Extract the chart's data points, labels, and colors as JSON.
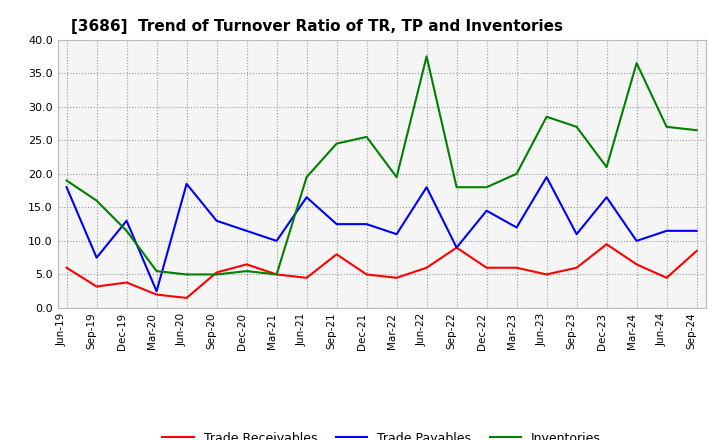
{
  "title": "[3686]  Trend of Turnover Ratio of TR, TP and Inventories",
  "x_labels": [
    "Jun-19",
    "Sep-19",
    "Dec-19",
    "Mar-20",
    "Jun-20",
    "Sep-20",
    "Dec-20",
    "Mar-21",
    "Jun-21",
    "Sep-21",
    "Dec-21",
    "Mar-22",
    "Jun-22",
    "Sep-22",
    "Dec-22",
    "Mar-23",
    "Jun-23",
    "Sep-23",
    "Dec-23",
    "Mar-24",
    "Jun-24",
    "Sep-24"
  ],
  "trade_receivables": [
    6.0,
    3.2,
    3.8,
    2.0,
    1.5,
    5.3,
    6.5,
    5.0,
    4.5,
    8.0,
    5.0,
    4.5,
    6.0,
    9.0,
    6.0,
    6.0,
    5.0,
    6.0,
    9.5,
    6.5,
    4.5,
    8.5
  ],
  "trade_payables": [
    18.0,
    7.5,
    13.0,
    2.5,
    18.5,
    13.0,
    11.5,
    10.0,
    16.5,
    12.5,
    12.5,
    11.0,
    18.0,
    9.0,
    14.5,
    12.0,
    19.5,
    11.0,
    16.5,
    10.0,
    11.5,
    11.5
  ],
  "inventories": [
    19.0,
    16.0,
    11.5,
    5.5,
    5.0,
    5.0,
    5.5,
    5.0,
    19.5,
    24.5,
    25.5,
    19.5,
    37.5,
    18.0,
    18.0,
    20.0,
    28.5,
    27.0,
    21.0,
    36.5,
    27.0,
    26.5
  ],
  "ylim": [
    0.0,
    40.0
  ],
  "yticks": [
    0.0,
    5.0,
    10.0,
    15.0,
    20.0,
    25.0,
    30.0,
    35.0,
    40.0
  ],
  "legend_labels": [
    "Trade Receivables",
    "Trade Payables",
    "Inventories"
  ],
  "line_colors": [
    "#ff0000",
    "#0000ff",
    "#008000"
  ],
  "background_color": "#ffffff",
  "plot_bg_color": "#f5f5f5",
  "grid_color": "#999999"
}
